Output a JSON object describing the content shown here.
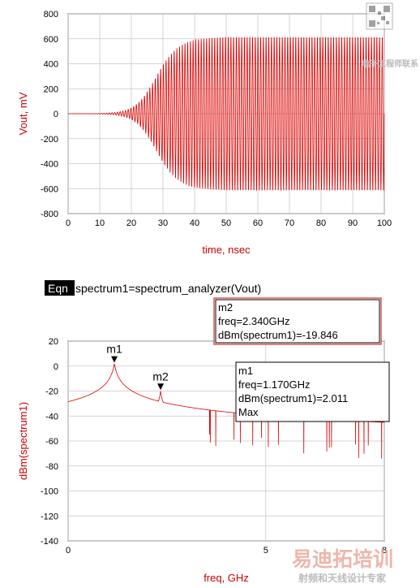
{
  "chart_data": [
    {
      "type": "line",
      "xlabel": "time, nsec",
      "ylabel": "Vout, mV",
      "xlim": [
        0,
        100
      ],
      "ylim": [
        -800,
        800
      ],
      "x_ticks": [
        0,
        10,
        20,
        30,
        40,
        50,
        60,
        70,
        80,
        90,
        100
      ],
      "y_ticks": [
        -800,
        -600,
        -400,
        -200,
        0,
        200,
        400,
        600,
        800
      ],
      "grid": true,
      "line_color": "#dd0000",
      "series": [
        {
          "description_free": true,
          "envelope_x": [
            0,
            10,
            15,
            18,
            20,
            22,
            24,
            26,
            28,
            30,
            32,
            34,
            36,
            38,
            40,
            45,
            50,
            100
          ],
          "envelope_y": [
            0,
            2,
            10,
            25,
            45,
            80,
            135,
            210,
            300,
            390,
            460,
            515,
            550,
            575,
            590,
            605,
            612,
            612
          ],
          "oscillation_freq_ghz": 1.17
        }
      ]
    },
    {
      "type": "line",
      "xlabel": "freq, GHz",
      "ylabel": "dBm(spectrum1)",
      "xlim": [
        0,
        8
      ],
      "ylim": [
        -140,
        20
      ],
      "x_ticks": [
        0,
        5,
        8
      ],
      "y_ticks": [
        -140,
        -120,
        -100,
        -80,
        -60,
        -40,
        -20,
        0,
        20
      ],
      "grid": true,
      "line_color": "#dd0000",
      "series": [
        {
          "peaks_freq_ghz": [
            1.17,
            2.34,
            3.51,
            4.68,
            5.85,
            7.02
          ],
          "peaks_dbm": [
            2.011,
            -19.846,
            -38,
            -46,
            -58,
            -57
          ]
        }
      ],
      "markers": [
        {
          "name": "m1",
          "x": 1.17,
          "y": 2.011
        },
        {
          "name": "m2",
          "x": 2.34,
          "y": -19.846
        }
      ]
    }
  ],
  "equation": {
    "badge": "Eqn",
    "text": "spectrum1=spectrum_analyzer(Vout)"
  },
  "marker_boxes": {
    "m2": {
      "title": "m2",
      "line1": "freq=2.340GHz",
      "line2": "dBm(spectrum1)=-19.846"
    },
    "m1": {
      "title": "m1",
      "line1": "freq=1.170GHz",
      "line2": "dBm(spectrum1)=2.011",
      "line3": "Max"
    }
  },
  "watermark": {
    "brand": "易迪拓培训",
    "sub": "射频和天线设计专家",
    "corner": "电子工程师联系"
  }
}
